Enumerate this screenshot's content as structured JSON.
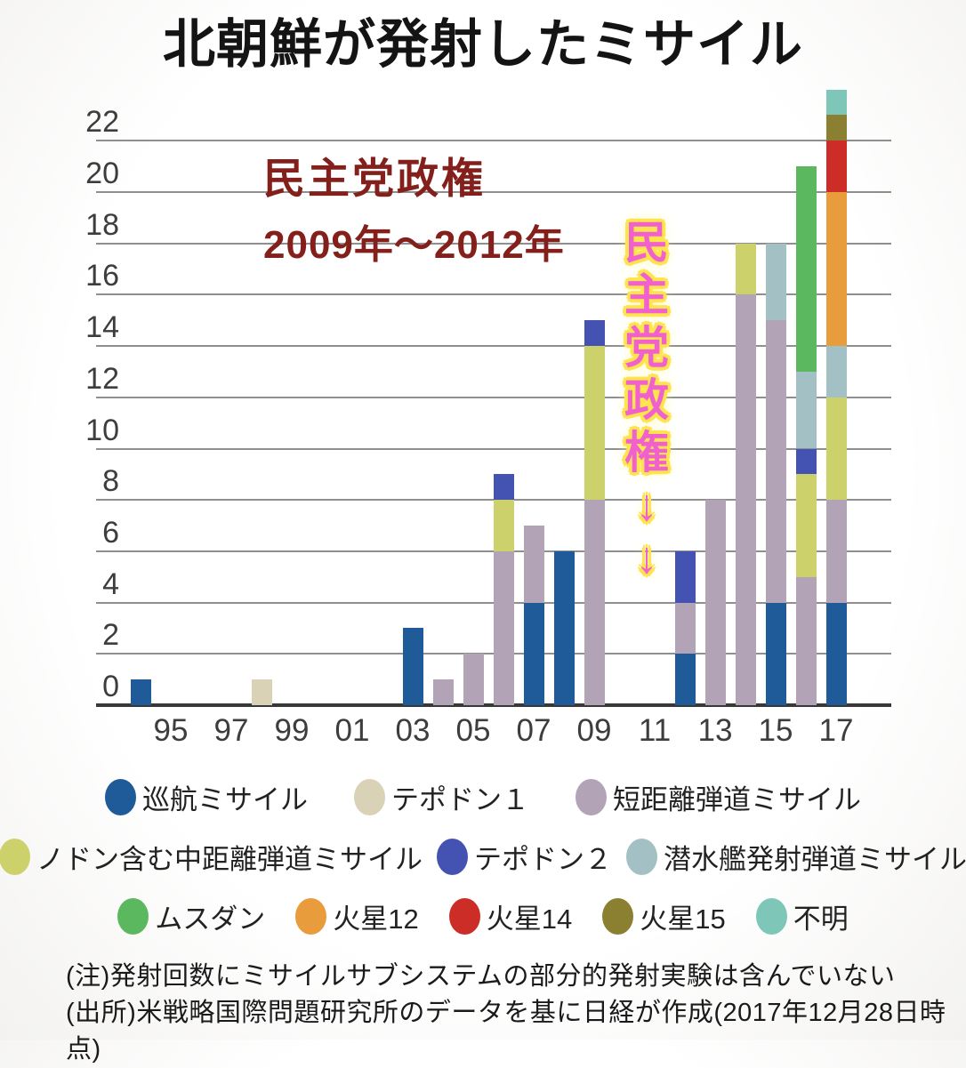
{
  "title": "北朝鮮が発射したミサイル",
  "annotation": {
    "line1": "民主党政権",
    "line2": "2009年～2012年",
    "color": "#84201b"
  },
  "vertical_annotation": {
    "text": "民主党政権↓↓",
    "chars": [
      "民",
      "主",
      "党",
      "政",
      "権",
      "↓",
      "↓"
    ],
    "color": "#f161cd",
    "outline_color": "#ffe44f"
  },
  "notes": {
    "note": "(注)発射回数にミサイルサブシステムの部分的発射実験は含んでいない",
    "source": "(出所)米戦略国際問題研究所のデータを基に日経が作成(2017年12月28日時点)"
  },
  "chart_data": {
    "type": "bar",
    "stacked": true,
    "title": "北朝鮮が発射したミサイル",
    "grid": true,
    "legend_position": "bottom",
    "ylim": [
      0,
      24
    ],
    "y_ticks": [
      0,
      2,
      4,
      6,
      8,
      10,
      12,
      14,
      16,
      18,
      20,
      22
    ],
    "x_tick_labels": [
      "95",
      "97",
      "99",
      "01",
      "03",
      "05",
      "07",
      "09",
      "11",
      "13",
      "15",
      "17"
    ],
    "years": [
      1994,
      1995,
      1996,
      1997,
      1998,
      1999,
      2000,
      2001,
      2002,
      2003,
      2004,
      2005,
      2006,
      2007,
      2008,
      2009,
      2010,
      2011,
      2012,
      2013,
      2014,
      2015,
      2016,
      2017
    ],
    "axis_color": "#383838",
    "grid_color": "#8f8f8f",
    "series": [
      {
        "name": "巡航ミサイル",
        "color": "#1f5b99",
        "values": [
          1,
          0,
          0,
          0,
          0,
          0,
          0,
          0,
          0,
          3,
          0,
          0,
          0,
          4,
          6,
          0,
          0,
          0,
          2,
          0,
          0,
          4,
          0,
          4
        ]
      },
      {
        "name": "テポドン１",
        "color": "#d9d2b6",
        "values": [
          0,
          0,
          0,
          0,
          1,
          0,
          0,
          0,
          0,
          0,
          0,
          0,
          0,
          0,
          0,
          0,
          0,
          0,
          0,
          0,
          0,
          0,
          0,
          0
        ]
      },
      {
        "name": "短距離弾道ミサイル",
        "color": "#b3a3b6",
        "values": [
          0,
          0,
          0,
          0,
          0,
          0,
          0,
          0,
          0,
          0,
          1,
          2,
          6,
          3,
          0,
          8,
          0,
          0,
          2,
          8,
          16,
          11,
          5,
          4
        ]
      },
      {
        "name": "ノドン含む中距離弾道ミサイル",
        "color": "#cdd16c",
        "values": [
          0,
          0,
          0,
          0,
          0,
          0,
          0,
          0,
          0,
          0,
          0,
          0,
          2,
          0,
          0,
          6,
          0,
          0,
          0,
          0,
          2,
          0,
          4,
          4
        ]
      },
      {
        "name": "テポドン２",
        "color": "#4453b2",
        "values": [
          0,
          0,
          0,
          0,
          0,
          0,
          0,
          0,
          0,
          0,
          0,
          0,
          1,
          0,
          0,
          1,
          0,
          0,
          2,
          0,
          0,
          0,
          1,
          0
        ]
      },
      {
        "name": "潜水艦発射弾道ミサイル",
        "color": "#a3c0c4",
        "values": [
          0,
          0,
          0,
          0,
          0,
          0,
          0,
          0,
          0,
          0,
          0,
          0,
          0,
          0,
          0,
          0,
          0,
          0,
          0,
          0,
          0,
          3,
          3,
          2
        ]
      },
      {
        "name": "ムスダン",
        "color": "#5cb85f",
        "values": [
          0,
          0,
          0,
          0,
          0,
          0,
          0,
          0,
          0,
          0,
          0,
          0,
          0,
          0,
          0,
          0,
          0,
          0,
          0,
          0,
          0,
          0,
          8,
          0
        ]
      },
      {
        "name": "火星12",
        "color": "#e89c3b",
        "values": [
          0,
          0,
          0,
          0,
          0,
          0,
          0,
          0,
          0,
          0,
          0,
          0,
          0,
          0,
          0,
          0,
          0,
          0,
          0,
          0,
          0,
          0,
          0,
          6
        ]
      },
      {
        "name": "火星14",
        "color": "#cd2d27",
        "values": [
          0,
          0,
          0,
          0,
          0,
          0,
          0,
          0,
          0,
          0,
          0,
          0,
          0,
          0,
          0,
          0,
          0,
          0,
          0,
          0,
          0,
          0,
          0,
          2
        ]
      },
      {
        "name": "火星15",
        "color": "#8b7f31",
        "values": [
          0,
          0,
          0,
          0,
          0,
          0,
          0,
          0,
          0,
          0,
          0,
          0,
          0,
          0,
          0,
          0,
          0,
          0,
          0,
          0,
          0,
          0,
          0,
          1
        ]
      },
      {
        "name": "不明",
        "color": "#7dc6b8",
        "values": [
          0,
          0,
          0,
          0,
          0,
          0,
          0,
          0,
          0,
          0,
          0,
          0,
          0,
          0,
          0,
          0,
          0,
          0,
          0,
          0,
          0,
          0,
          0,
          1
        ]
      }
    ],
    "legend_rows": [
      [
        0,
        1,
        2
      ],
      [
        3,
        4,
        5
      ],
      [
        6,
        7,
        8,
        9,
        10
      ]
    ]
  }
}
